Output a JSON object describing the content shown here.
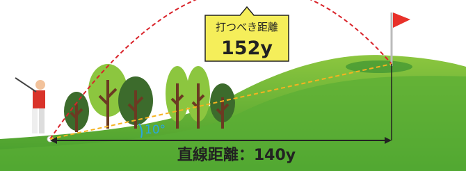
{
  "callout": {
    "label": "打つべき距離",
    "value": "152y"
  },
  "angle": "10°",
  "straight_distance": "直線距離：140y"
}
